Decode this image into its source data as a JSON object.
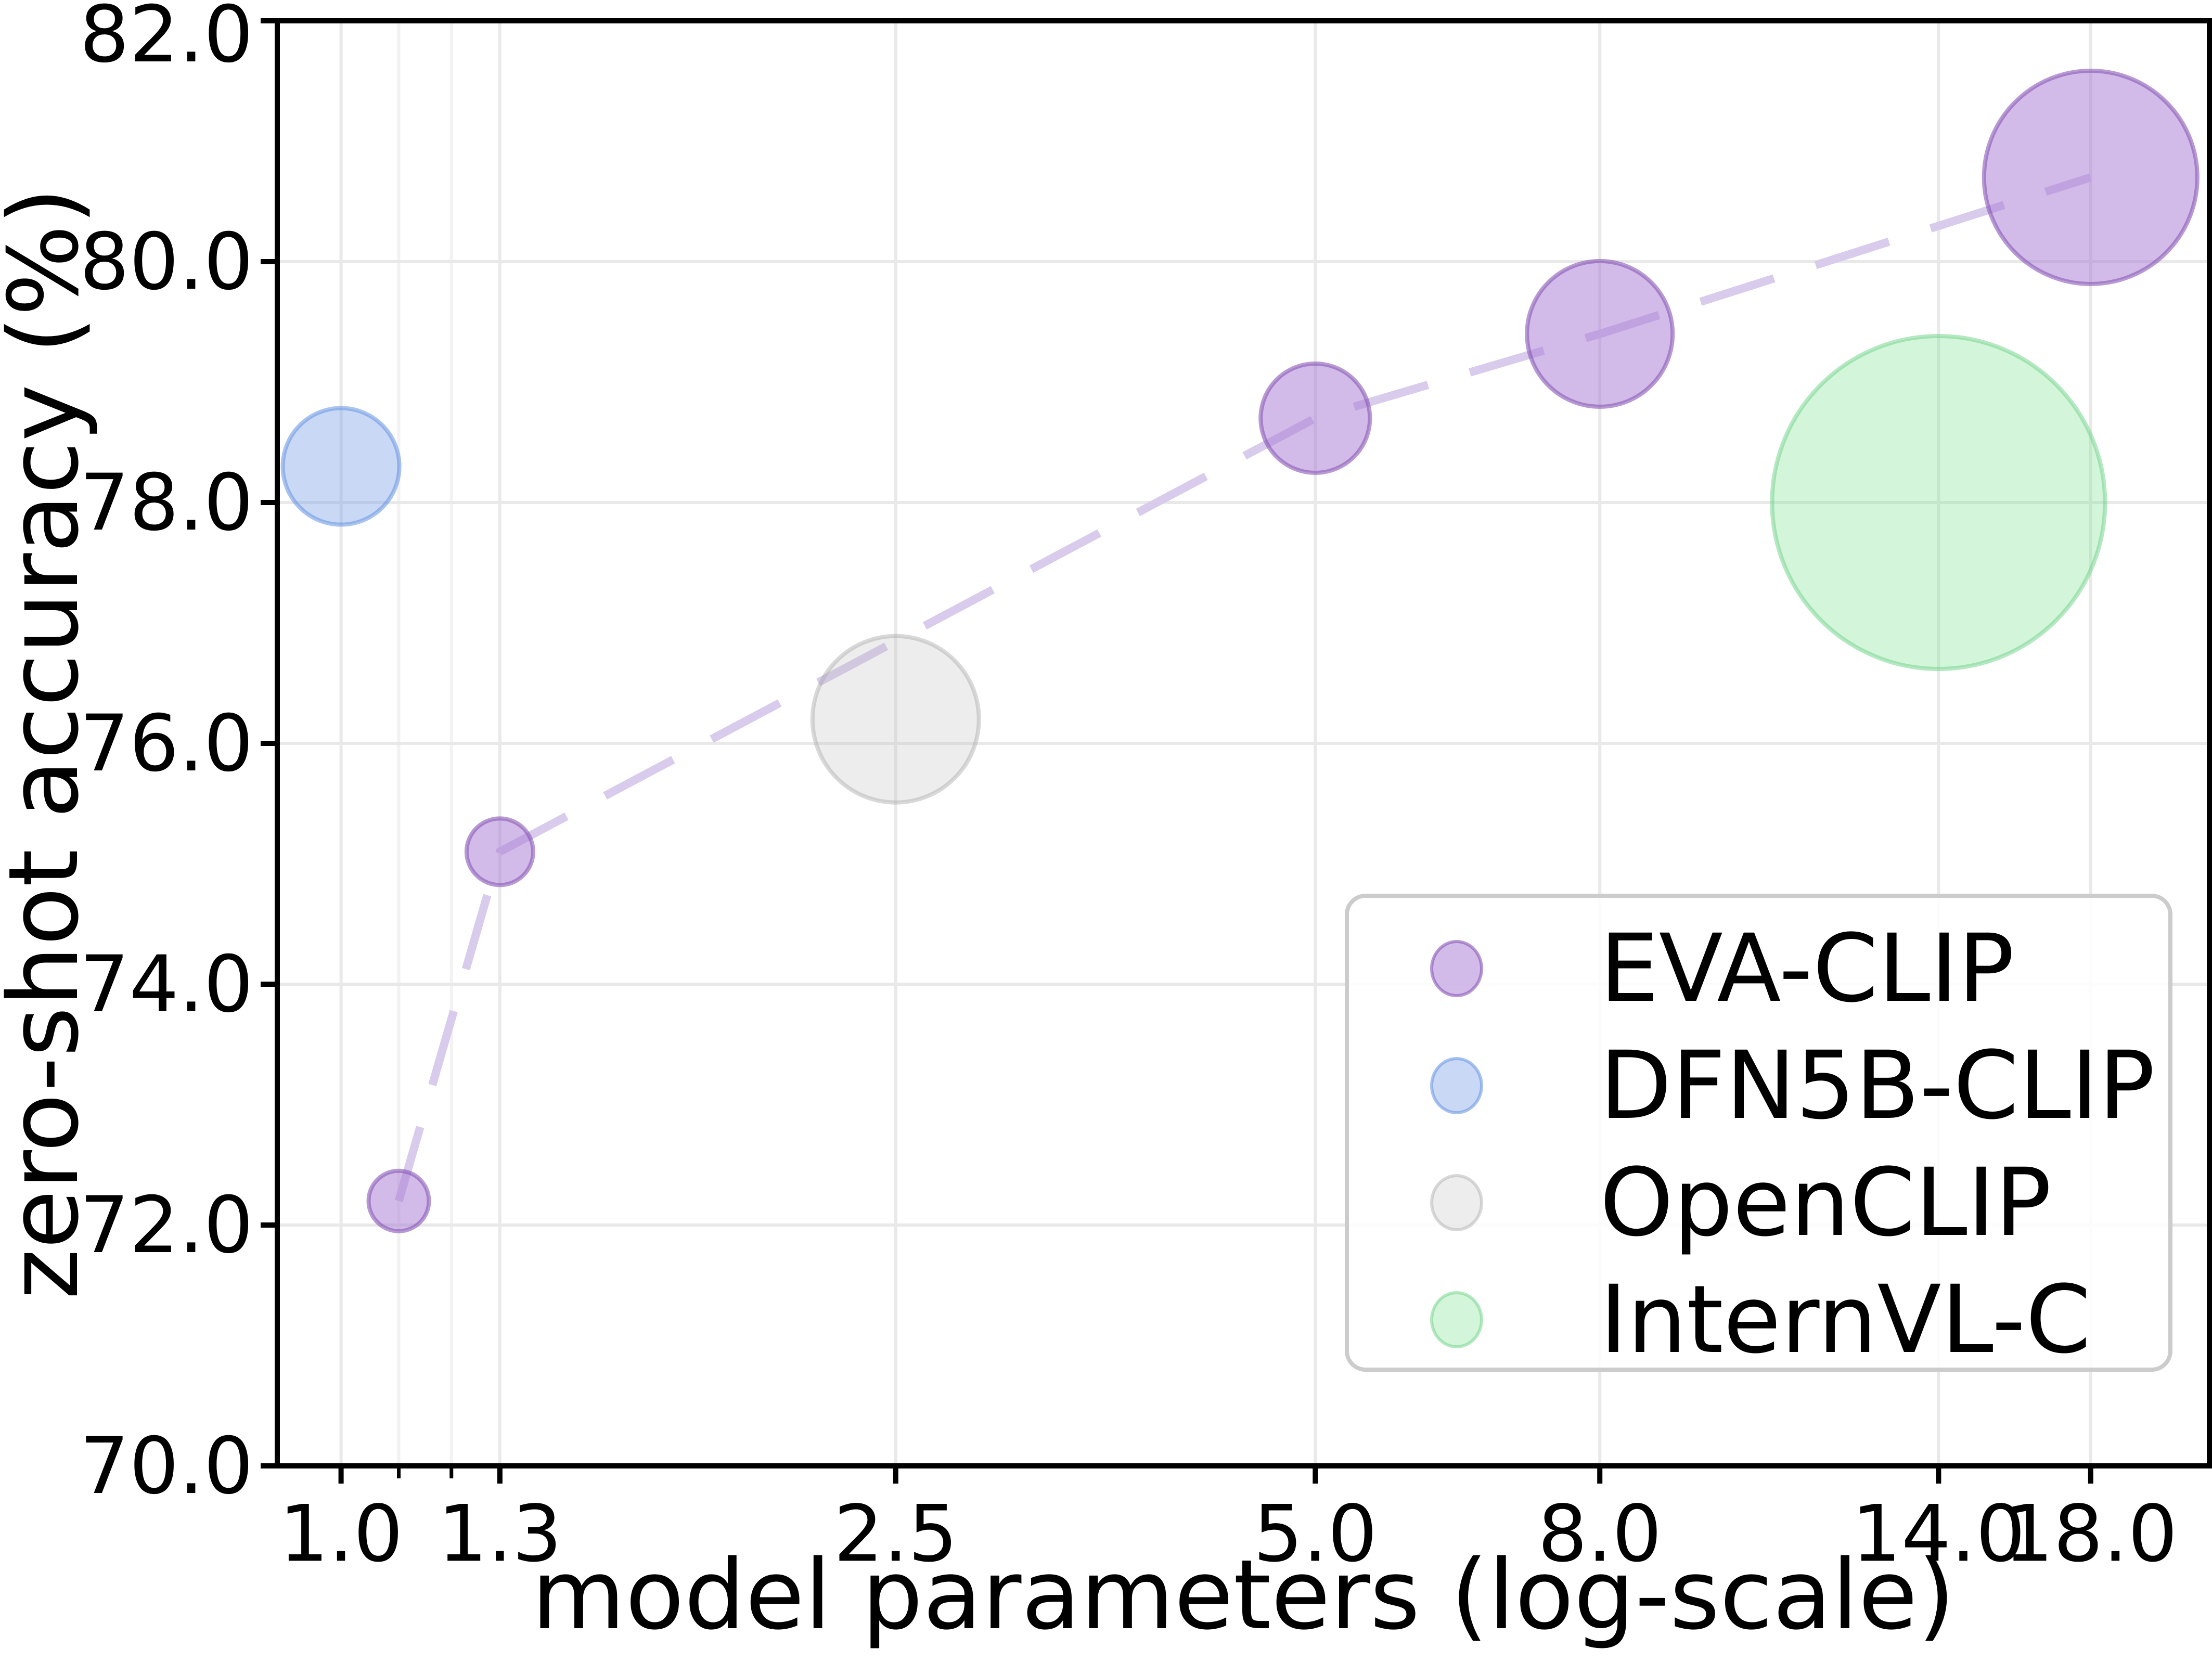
{
  "figure": {
    "background": "#ffffff",
    "axes_color": "#000000",
    "grid_color": "#e9e9e9",
    "minor_grid_color": "#f2f2f2",
    "trend_line_color": "#d8cbec",
    "legend": {
      "border_color": "#cccccc",
      "background": "rgba(255,255,255,0.85)",
      "entries": [
        "EVA-CLIP",
        "DFN5B-CLIP",
        "OpenCLIP",
        "InternVL-C"
      ]
    }
  },
  "chart_data": {
    "type": "scatter",
    "variant": "bubble",
    "title": "",
    "xlabel": "model parameters (log-scale)",
    "ylabel": "zero-shot accuracy (%)",
    "x_scale": "log",
    "xlim": [
      0.9,
      21.9
    ],
    "ylim": [
      70.0,
      82.0
    ],
    "x_ticks": [
      1.0,
      1.3,
      2.5,
      5.0,
      8.0,
      14.0,
      18.0
    ],
    "x_tick_labels": [
      "1.0",
      "1.3",
      "2.5",
      "5.0",
      "8.0",
      "14.0",
      "18.0"
    ],
    "x_minor_ticks": [
      1.1,
      1.2
    ],
    "y_ticks": [
      70.0,
      72.0,
      74.0,
      76.0,
      78.0,
      80.0,
      82.0
    ],
    "y_tick_labels": [
      "70.0",
      "72.0",
      "74.0",
      "76.0",
      "78.0",
      "80.0",
      "82.0"
    ],
    "grid": true,
    "legend_position": "lower right",
    "series": [
      {
        "name": "EVA-CLIP",
        "marker_fill": "rgba(168,124,210,0.52)",
        "marker_stroke": "rgba(137,87,181,0.6)",
        "connector": "dashed",
        "points": [
          {
            "x": 1.1,
            "y": 72.2,
            "r": 58
          },
          {
            "x": 1.3,
            "y": 75.1,
            "r": 64
          },
          {
            "x": 5.0,
            "y": 78.7,
            "r": 105
          },
          {
            "x": 8.0,
            "y": 79.4,
            "r": 140
          },
          {
            "x": 18.0,
            "y": 80.7,
            "r": 205
          }
        ]
      },
      {
        "name": "DFN5B-CLIP",
        "marker_fill": "rgba(120,160,230,0.4)",
        "marker_stroke": "rgba(100,145,225,0.55)",
        "connector": "none",
        "points": [
          {
            "x": 1.0,
            "y": 78.3,
            "r": 112
          }
        ]
      },
      {
        "name": "OpenCLIP",
        "marker_fill": "rgba(190,190,190,0.28)",
        "marker_stroke": "rgba(170,170,170,0.45)",
        "connector": "none",
        "points": [
          {
            "x": 2.5,
            "y": 76.2,
            "r": 160
          }
        ]
      },
      {
        "name": "InternVL-C",
        "marker_fill": "rgba(130,225,150,0.35)",
        "marker_stroke": "rgba(110,210,135,0.5)",
        "connector": "none",
        "points": [
          {
            "x": 14.0,
            "y": 78.0,
            "r": 320
          }
        ]
      }
    ]
  }
}
